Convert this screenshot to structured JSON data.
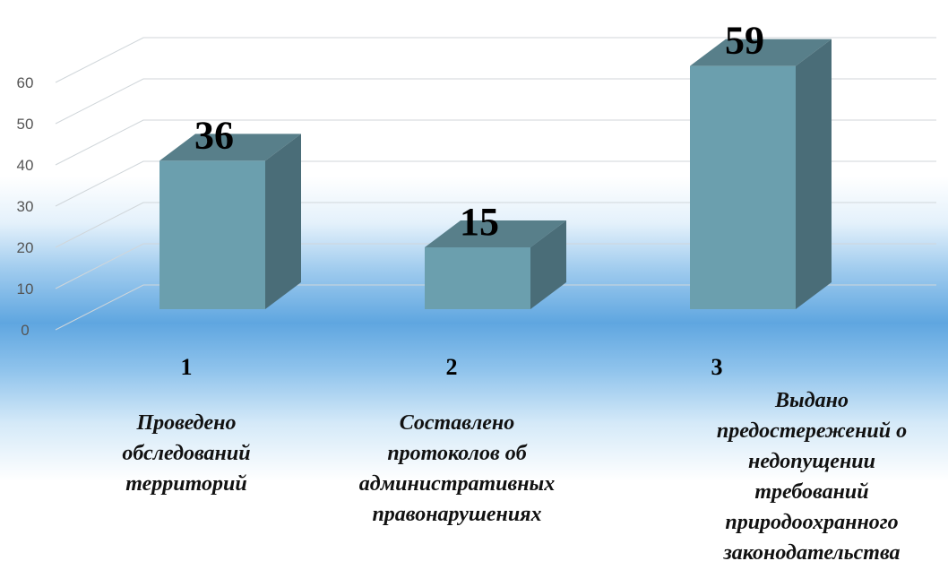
{
  "chart_data": {
    "type": "bar",
    "categories": [
      "1",
      "2",
      "3"
    ],
    "values": [
      36,
      15,
      59
    ],
    "descriptions": [
      "Проведено\nобследований\nтерриторий",
      "Составлено\nпротоколов об\nадминистративных\nправонарушениях",
      "Выдано\nпредостережений о\nнедопущении\nтребований\nприродоохранного\nзаконодательства"
    ],
    "color": "#6b9fae",
    "ylim": [
      0,
      60
    ],
    "yticks": [
      0,
      10,
      20,
      30,
      40,
      50,
      60
    ],
    "grid": true
  }
}
